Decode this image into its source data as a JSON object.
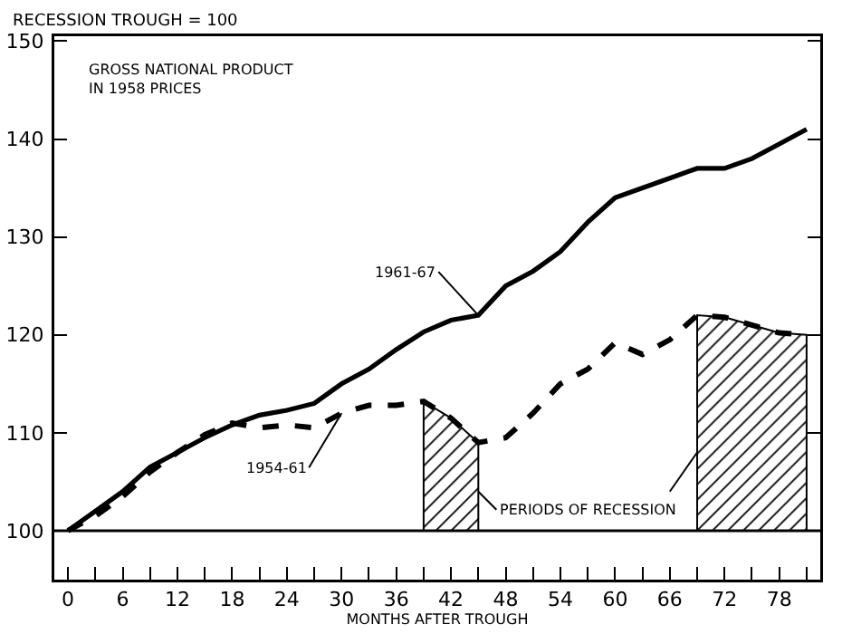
{
  "chart_data": {
    "type": "line",
    "title": "GROSS NATIONAL PRODUCT\nIN 1958 PRICES",
    "ylabel": "RECESSION TROUGH = 100",
    "xlabel": "MONTHS AFTER TROUGH",
    "x": [
      0,
      3,
      6,
      9,
      12,
      15,
      18,
      21,
      24,
      27,
      30,
      33,
      36,
      39,
      42,
      45,
      48,
      51,
      54,
      57,
      60,
      63,
      66,
      69,
      72,
      75,
      78,
      81
    ],
    "series": [
      {
        "name": "1961-67",
        "color": "#000000",
        "line_style": "solid",
        "values": [
          100,
          102,
          104,
          106.5,
          108,
          109.5,
          110.8,
          111.8,
          112.3,
          113,
          115,
          116.5,
          118.5,
          120.3,
          121.5,
          122,
          125,
          126.5,
          128.5,
          131.5,
          134,
          135,
          136,
          137,
          137,
          138,
          139.5,
          141
        ]
      },
      {
        "name": "1954-61",
        "color": "#000000",
        "line_style": "dashed",
        "values": [
          100,
          101.5,
          103.5,
          106,
          108,
          109.8,
          111,
          110.5,
          110.8,
          110.5,
          112,
          112.8,
          112.8,
          113.2,
          111.5,
          109,
          109.5,
          112,
          115,
          116.5,
          119.2,
          118,
          119.5,
          122,
          121.8,
          121,
          120.2,
          120
        ]
      }
    ],
    "bands": [
      {
        "axis": "x",
        "from": 39,
        "to": 45,
        "color": "#000000"
      },
      {
        "axis": "x",
        "from": 69,
        "to": 81,
        "color": "#000000"
      }
    ],
    "ref_lines": [
      {
        "axis": "y",
        "value": 100,
        "color": "#000000"
      }
    ],
    "annotations": [
      {
        "text": "PERIODS OF RECESSION",
        "x": 45,
        "y": 104
      }
    ],
    "xlim": [
      -1.5,
      82.5
    ],
    "xticks": [
      0,
      {
        "value": 3,
        "label": null
      },
      6,
      {
        "value": 9,
        "label": null
      },
      12,
      {
        "value": 15,
        "label": null
      },
      18,
      {
        "value": 21,
        "label": null
      },
      24,
      {
        "value": 27,
        "label": null
      },
      30,
      {
        "value": 33,
        "label": null
      },
      36,
      {
        "value": 39,
        "label": null
      },
      42,
      {
        "value": 45,
        "label": null
      },
      48,
      {
        "value": 51,
        "label": null
      },
      54,
      {
        "value": 57,
        "label": null
      },
      60,
      {
        "value": 63,
        "label": null
      },
      66,
      {
        "value": 69,
        "label": null
      },
      72,
      {
        "value": 75,
        "label": null
      },
      78,
      {
        "value": 81,
        "label": null
      }
    ],
    "ylim": [
      95,
      150.5
    ],
    "yticks": [
      100,
      110,
      120,
      130,
      140,
      150
    ],
    "grid": false,
    "legend": false
  }
}
